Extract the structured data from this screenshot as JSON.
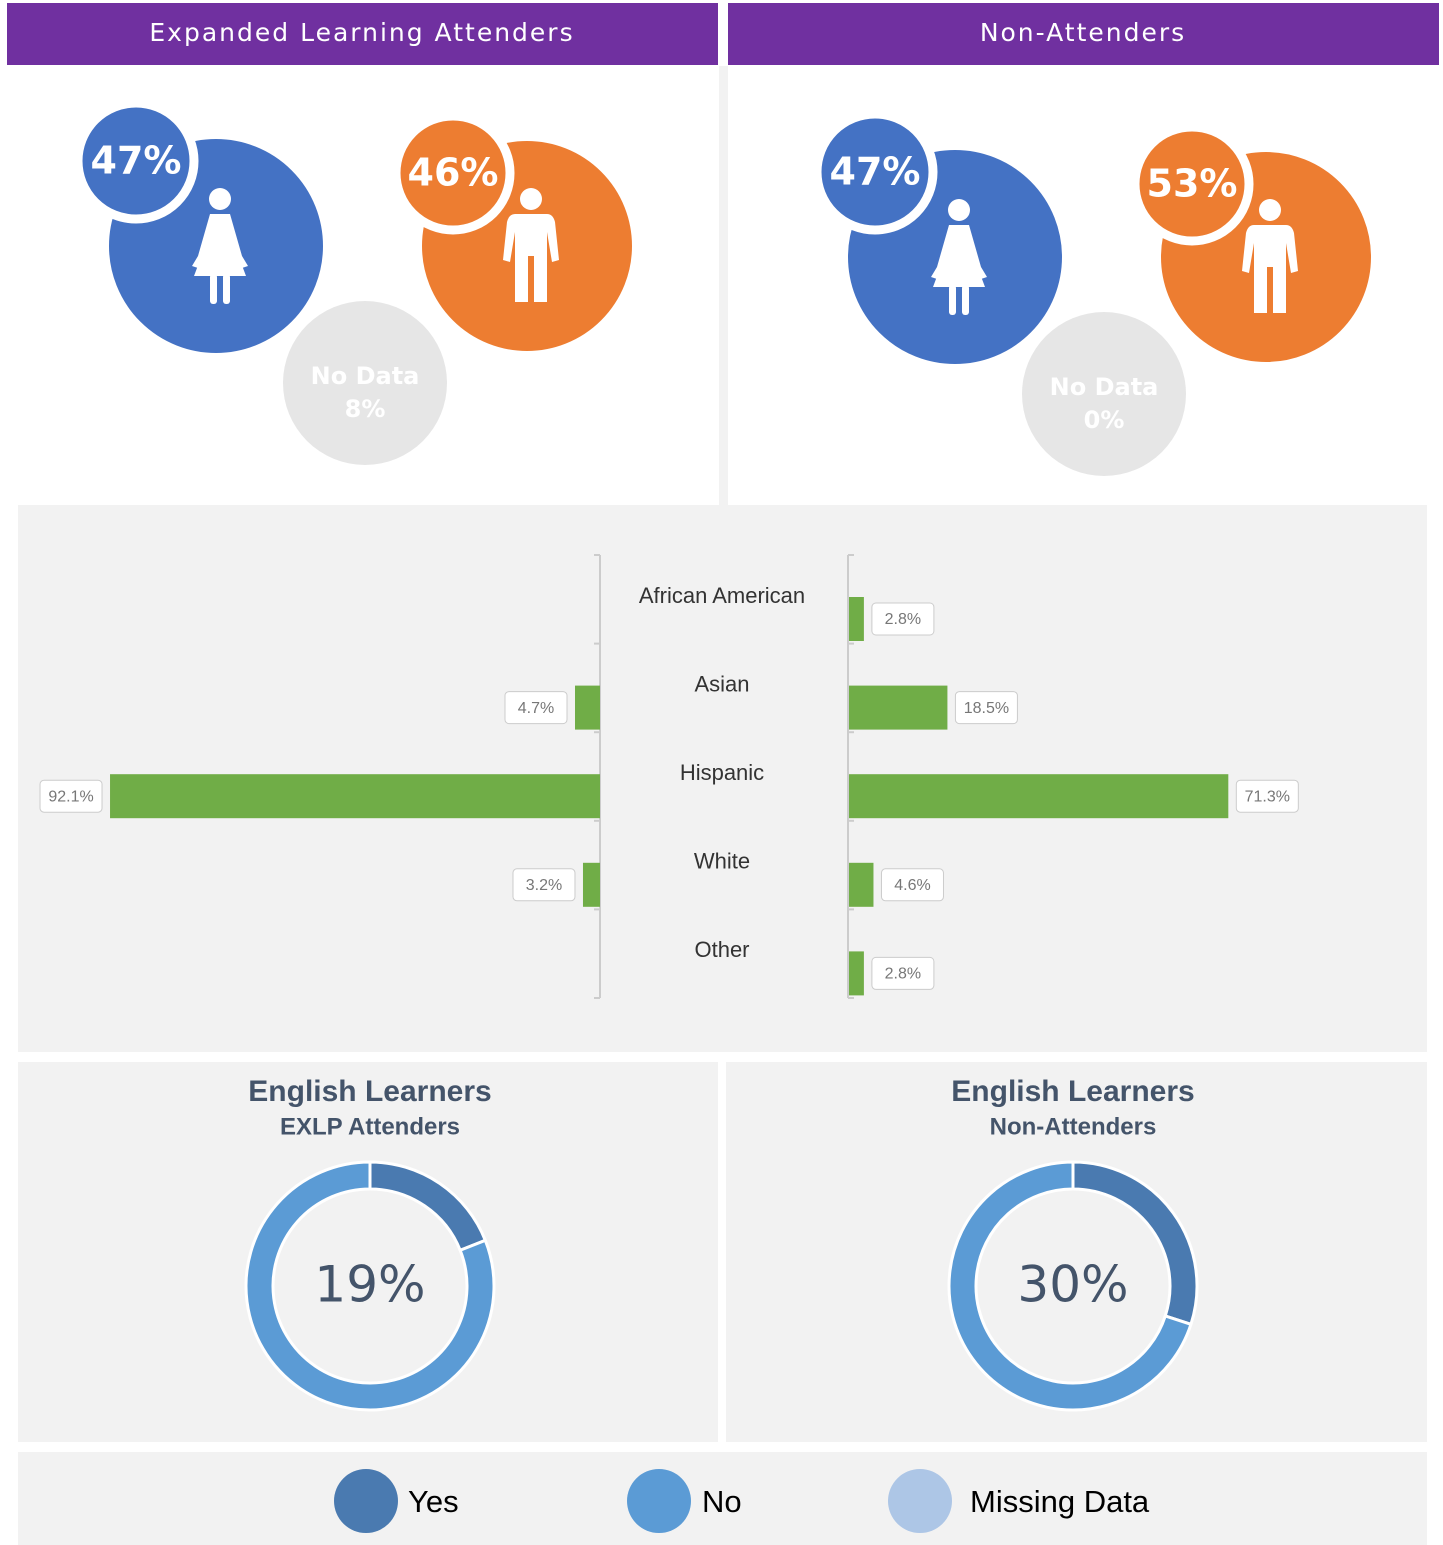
{
  "chart_data": [
    {
      "type": "gender",
      "title": "Expanded Learning Attenders",
      "categories": [
        null,
        null,
        "No Data"
      ],
      "values": [
        47,
        46,
        8
      ],
      "value_labels": [
        "47%",
        "46%",
        "8%"
      ],
      "colors": [
        "#4472c4",
        "#ed7d31",
        "#e6e6e6"
      ]
    },
    {
      "type": "gender",
      "title": "Non-Attenders",
      "categories": [
        null,
        null,
        "No Data"
      ],
      "values": [
        47,
        53,
        0
      ],
      "value_labels": [
        "47%",
        "53%",
        "0%"
      ],
      "colors": [
        "#4472c4",
        "#ed7d31",
        "#e6e6e6"
      ]
    },
    {
      "type": "butterfly",
      "categories": [
        "African American",
        "Asian",
        "Hispanic",
        "White",
        "Other"
      ],
      "color": "#70ad47",
      "xlim": [
        0,
        100
      ],
      "series": [
        {
          "values": [
            null,
            4.7,
            92.1,
            3.2,
            null
          ],
          "value_labels": [
            null,
            "4.7%",
            "92.1%",
            "3.2%",
            null
          ]
        },
        {
          "values": [
            2.8,
            18.5,
            71.3,
            4.6,
            2.8
          ],
          "value_labels": [
            "2.8%",
            "18.5%",
            "71.3%",
            "4.6%",
            "2.8%"
          ]
        }
      ]
    },
    {
      "type": "donut",
      "title": "English Learners",
      "subtitle": "EXLP Attenders",
      "values": [
        19,
        81,
        0
      ],
      "value_labels": [
        "19%",
        null,
        null
      ]
    },
    {
      "type": "donut",
      "title": "English Learners",
      "subtitle": "Non-Attenders",
      "values": [
        30,
        70,
        0
      ],
      "value_labels": [
        "30%",
        null,
        null
      ]
    }
  ],
  "legend": {
    "labels": [
      "Yes",
      "No",
      "Missing Data"
    ],
    "colors": [
      "#4a7ab0",
      "#5b9bd5",
      "#adc6e6"
    ]
  }
}
